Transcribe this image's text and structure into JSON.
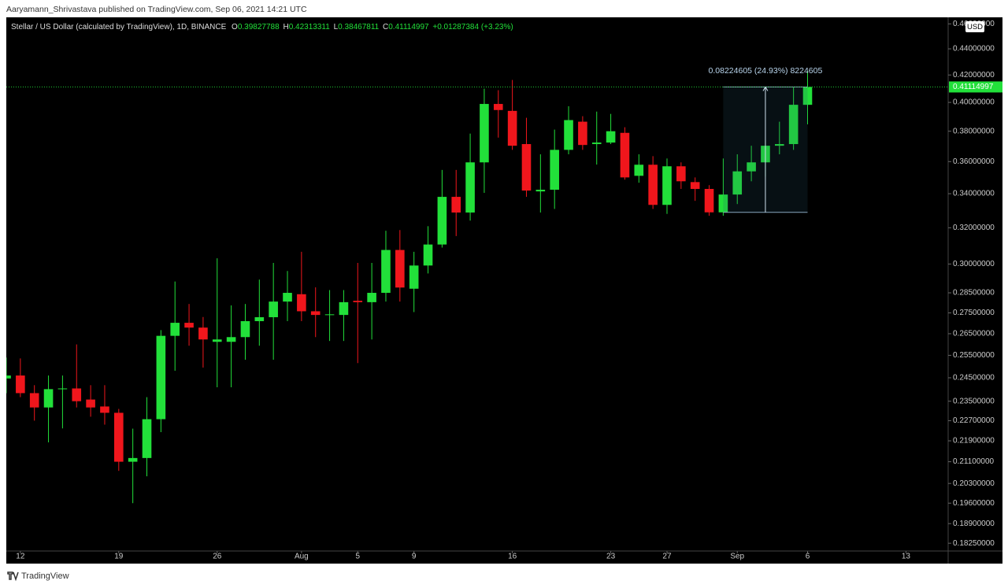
{
  "header": {
    "published": "Aaryamann_Shrivastava published on TradingView.com, Sep 06, 2021 14:21 UTC",
    "brand": "TradingView"
  },
  "chart_data": {
    "type": "candlestick",
    "title": "Stellar / US Dollar (calculated by TradingView), 1D, BINANCE",
    "ohlc_letters": [
      "O",
      "H",
      "L",
      "C"
    ],
    "change_label": "+0.01287384 (+3.23%)",
    "currency": "USD",
    "measure_label": "0.08224605 (24.93%) 8224605",
    "up_color": "#22e03a",
    "down_color": "#f0161c",
    "log_scale": true,
    "grid": false,
    "last_price_line": true,
    "x": [
      "2021-07-11",
      "2021-07-12",
      "2021-07-13",
      "2021-07-14",
      "2021-07-15",
      "2021-07-16",
      "2021-07-17",
      "2021-07-18",
      "2021-07-19",
      "2021-07-20",
      "2021-07-21",
      "2021-07-22",
      "2021-07-23",
      "2021-07-24",
      "2021-07-25",
      "2021-07-26",
      "2021-07-27",
      "2021-07-28",
      "2021-07-29",
      "2021-07-30",
      "2021-07-31",
      "2021-08-01",
      "2021-08-02",
      "2021-08-03",
      "2021-08-04",
      "2021-08-05",
      "2021-08-06",
      "2021-08-07",
      "2021-08-08",
      "2021-08-09",
      "2021-08-10",
      "2021-08-11",
      "2021-08-12",
      "2021-08-13",
      "2021-08-14",
      "2021-08-15",
      "2021-08-16",
      "2021-08-17",
      "2021-08-18",
      "2021-08-19",
      "2021-08-20",
      "2021-08-21",
      "2021-08-22",
      "2021-08-23",
      "2021-08-24",
      "2021-08-25",
      "2021-08-26",
      "2021-08-27",
      "2021-08-28",
      "2021-08-29",
      "2021-08-30",
      "2021-08-31",
      "2021-09-01",
      "2021-09-02",
      "2021-09-03",
      "2021-09-04",
      "2021-09-05",
      "2021-09-06"
    ],
    "open": [
      0.2447,
      0.246,
      0.2384,
      0.2324,
      0.2401,
      0.2404,
      0.2357,
      0.2328,
      0.2302,
      0.211,
      0.2124,
      0.2276,
      0.264,
      0.2702,
      0.2679,
      0.2612,
      0.2612,
      0.2634,
      0.271,
      0.2729,
      0.2806,
      0.2843,
      0.2758,
      0.274,
      0.274,
      0.281,
      0.2803,
      0.285,
      0.3076,
      0.2871,
      0.2992,
      0.3106,
      0.3381,
      0.3288,
      0.3595,
      0.3989,
      0.394,
      0.3714,
      0.3414,
      0.3424,
      0.3676,
      0.3865,
      0.3714,
      0.3724,
      0.3789,
      0.351,
      0.358,
      0.3333,
      0.357,
      0.3471,
      0.3429,
      0.32890392,
      0.3395,
      0.3538,
      0.3595,
      0.3703,
      0.3714,
      0.39827788
    ],
    "high": [
      0.254,
      0.2536,
      0.2418,
      0.246,
      0.246,
      0.26,
      0.2418,
      0.2418,
      0.2318,
      0.2238,
      0.2367,
      0.2667,
      0.2908,
      0.2794,
      0.273,
      0.3031,
      0.2787,
      0.2794,
      0.2918,
      0.3006,
      0.2963,
      0.3066,
      0.2878,
      0.2864,
      0.2864,
      0.3006,
      0.3006,
      0.3183,
      0.3187,
      0.3066,
      0.3209,
      0.3547,
      0.3547,
      0.3784,
      0.4099,
      0.4088,
      0.4163,
      0.3892,
      0.3647,
      0.3811,
      0.3973,
      0.3903,
      0.3935,
      0.3919,
      0.3827,
      0.3647,
      0.3635,
      0.362,
      0.3595,
      0.35,
      0.3452,
      0.362,
      0.3647,
      0.3703,
      0.3741,
      0.3865,
      0.4114,
      0.42313311
    ],
    "low": [
      0.2384,
      0.2367,
      0.227,
      0.2184,
      0.2239,
      0.2324,
      0.2286,
      0.2254,
      0.2076,
      0.196,
      0.2056,
      0.2224,
      0.2481,
      0.2594,
      0.2495,
      0.2409,
      0.2409,
      0.253,
      0.2594,
      0.253,
      0.271,
      0.271,
      0.2634,
      0.2616,
      0.2616,
      0.2515,
      0.2623,
      0.2806,
      0.2806,
      0.2754,
      0.295,
      0.3089,
      0.3153,
      0.3241,
      0.3405,
      0.3757,
      0.3676,
      0.3381,
      0.3288,
      0.3309,
      0.3647,
      0.3676,
      0.3581,
      0.3714,
      0.3486,
      0.3467,
      0.3309,
      0.328,
      0.3429,
      0.3357,
      0.3269,
      0.3269,
      0.3338,
      0.3476,
      0.3505,
      0.3647,
      0.3676,
      0.38467811
    ],
    "close": [
      0.246,
      0.2384,
      0.2324,
      0.2401,
      0.2404,
      0.235,
      0.2324,
      0.2302,
      0.211,
      0.2124,
      0.2276,
      0.264,
      0.2702,
      0.2679,
      0.2623,
      0.2623,
      0.2634,
      0.271,
      0.2729,
      0.2806,
      0.285,
      0.2758,
      0.274,
      0.2743,
      0.2803,
      0.2803,
      0.285,
      0.3076,
      0.2877,
      0.2992,
      0.3106,
      0.3381,
      0.3288,
      0.3595,
      0.3989,
      0.3946,
      0.3703,
      0.3419,
      0.3424,
      0.3676,
      0.3876,
      0.3708,
      0.3724,
      0.38,
      0.35,
      0.358,
      0.3333,
      0.357,
      0.3476,
      0.3429,
      0.32890392,
      0.3395,
      0.3538,
      0.3595,
      0.3703,
      0.3714,
      0.3983,
      0.41114997
    ],
    "xlim": [
      "2021-07-11",
      "2021-09-16"
    ],
    "xticks": [
      {
        "value": "2021-07-12",
        "label": "12"
      },
      {
        "value": "2021-07-19",
        "label": "19"
      },
      {
        "value": "2021-07-26",
        "label": "26"
      },
      {
        "value": "2021-08-01",
        "label": "Aug"
      },
      {
        "value": "2021-08-05",
        "label": "5"
      },
      {
        "value": "2021-08-09",
        "label": "9"
      },
      {
        "value": "2021-08-16",
        "label": "16"
      },
      {
        "value": "2021-08-23",
        "label": "23"
      },
      {
        "value": "2021-08-27",
        "label": "27"
      },
      {
        "value": "2021-09-01",
        "label": "Sep"
      },
      {
        "value": "2021-09-06",
        "label": "6"
      },
      {
        "value": "2021-09-13",
        "label": "13"
      }
    ],
    "ylim": [
      0.18,
      0.4654
    ],
    "yticks": [
      {
        "value": 0.46,
        "label": "0.46000000"
      },
      {
        "value": 0.44,
        "label": "0.44000000"
      },
      {
        "value": 0.42,
        "label": "0.42000000"
      },
      {
        "value": 0.4,
        "label": "0.40000000"
      },
      {
        "value": 0.38,
        "label": "0.38000000"
      },
      {
        "value": 0.36,
        "label": "0.36000000"
      },
      {
        "value": 0.34,
        "label": "0.34000000"
      },
      {
        "value": 0.32,
        "label": "0.32000000"
      },
      {
        "value": 0.3,
        "label": "0.30000000"
      },
      {
        "value": 0.285,
        "label": "0.28500000"
      },
      {
        "value": 0.275,
        "label": "0.27500000"
      },
      {
        "value": 0.265,
        "label": "0.26500000"
      },
      {
        "value": 0.255,
        "label": "0.25500000"
      },
      {
        "value": 0.245,
        "label": "0.24500000"
      },
      {
        "value": 0.235,
        "label": "0.23500000"
      },
      {
        "value": 0.227,
        "label": "0.22700000"
      },
      {
        "value": 0.219,
        "label": "0.21900000"
      },
      {
        "value": 0.211,
        "label": "0.21100000"
      },
      {
        "value": 0.203,
        "label": "0.20300000"
      },
      {
        "value": 0.196,
        "label": "0.19600000"
      },
      {
        "value": 0.189,
        "label": "0.18900000"
      },
      {
        "value": 0.1825,
        "label": "0.18250000"
      }
    ]
  }
}
